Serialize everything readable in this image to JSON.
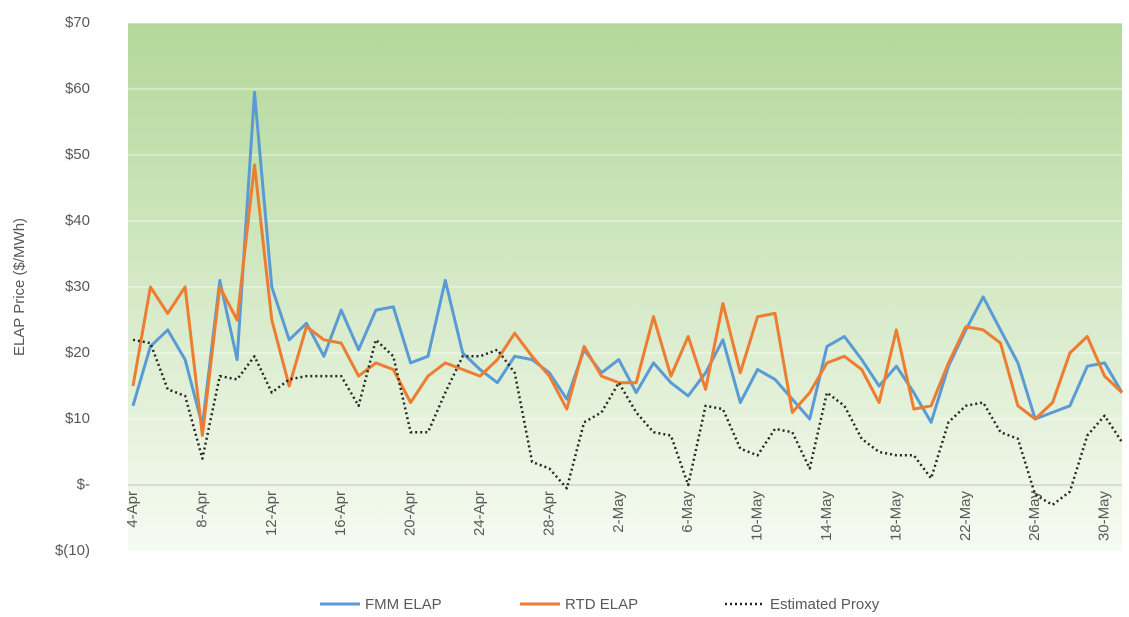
{
  "chart_data": {
    "type": "line",
    "y_label": "ELAP Price ($/MWh)",
    "categories": [
      "4-Apr",
      null,
      null,
      null,
      "8-Apr",
      null,
      null,
      null,
      "12-Apr",
      null,
      null,
      null,
      "16-Apr",
      null,
      null,
      null,
      "20-Apr",
      null,
      null,
      null,
      "24-Apr",
      null,
      null,
      null,
      "28-Apr",
      null,
      null,
      null,
      "2-May",
      null,
      null,
      null,
      "6-May",
      null,
      null,
      null,
      "10-May",
      null,
      null,
      null,
      "14-May",
      null,
      null,
      null,
      "18-May",
      null,
      null,
      null,
      "22-May",
      null,
      null,
      null,
      "26-May",
      null,
      null,
      null,
      "30-May",
      null
    ],
    "series": [
      {
        "name": "FMM ELAP",
        "color": "#5b9bd5",
        "dash": "solid",
        "values": [
          12,
          21,
          23.5,
          19,
          9,
          31,
          19,
          59.5,
          30,
          22,
          24.5,
          19.5,
          26.5,
          20.5,
          26.5,
          27,
          18.5,
          19.5,
          31,
          20,
          17.5,
          15.5,
          19.5,
          19,
          17,
          13,
          20.5,
          17,
          19,
          14,
          18.5,
          15.5,
          13.5,
          17,
          22,
          12.5,
          17.5,
          16,
          13,
          10,
          21,
          22.5,
          19,
          15,
          18,
          14,
          9.5,
          18,
          23.5,
          28.5,
          23.5,
          18.5,
          10,
          11,
          12,
          18,
          18.5,
          14
        ]
      },
      {
        "name": "RTD ELAP",
        "color": "#ed7d31",
        "dash": "solid",
        "values": [
          15,
          30,
          26,
          30,
          7.5,
          30,
          25,
          48.5,
          25,
          15,
          24,
          22,
          21.5,
          16.5,
          18.5,
          17.5,
          12.5,
          16.5,
          18.5,
          17.5,
          16.5,
          19,
          23,
          19.5,
          16.5,
          11.5,
          21,
          16.5,
          15.5,
          15.5,
          25.5,
          16.5,
          22.5,
          14.5,
          27.5,
          17,
          25.5,
          26,
          11,
          14,
          18.5,
          19.5,
          17.5,
          12.5,
          23.5,
          11.5,
          12,
          18.5,
          24,
          23.5,
          21.5,
          12,
          10,
          12.5,
          20,
          22.5,
          16.5,
          14
        ]
      },
      {
        "name": "Estimated Proxy",
        "color": "#262626",
        "dash": "dotted",
        "values": [
          22,
          21.5,
          14.5,
          13.5,
          4,
          16.5,
          16,
          19.5,
          14,
          16,
          16.5,
          16.5,
          16.5,
          12,
          22,
          19.5,
          8,
          8,
          14,
          19.5,
          19.5,
          20.5,
          17,
          3.5,
          2.5,
          -0.5,
          9.5,
          11,
          15.5,
          11,
          8,
          7.5,
          0,
          12,
          11.5,
          5.5,
          4.5,
          8.5,
          8,
          2.5,
          14,
          12,
          7,
          5,
          4.5,
          4.5,
          1,
          9.5,
          12,
          12.5,
          8,
          7,
          -1.5,
          -3,
          -1,
          7.5,
          10.5,
          6.5
        ]
      }
    ],
    "ylim": [
      -10,
      70
    ],
    "yticks": [
      {
        "value": -10,
        "label": "$(10)"
      },
      {
        "value": 0,
        "label": "$-"
      },
      {
        "value": 10,
        "label": "$10"
      },
      {
        "value": 20,
        "label": "$20"
      },
      {
        "value": 30,
        "label": "$30"
      },
      {
        "value": 40,
        "label": "$40"
      },
      {
        "value": 50,
        "label": "$50"
      },
      {
        "value": 60,
        "label": "$60"
      },
      {
        "value": 70,
        "label": "$70"
      }
    ],
    "grid": true,
    "legend": "bottom"
  }
}
